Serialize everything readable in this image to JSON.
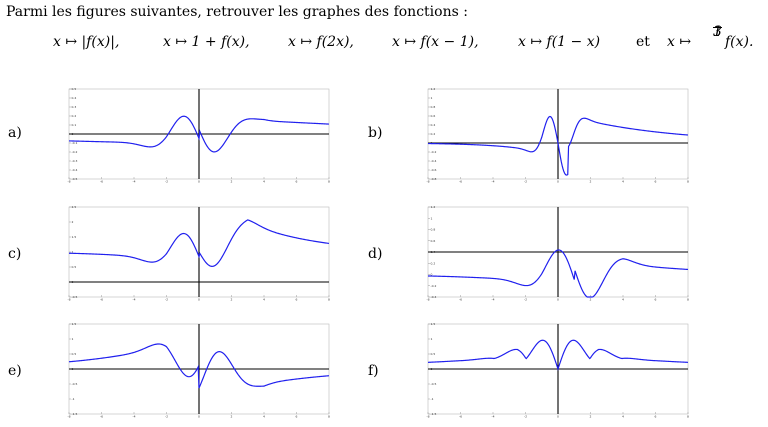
{
  "intro": "Parmi les figures suivantes, retrouver les graphes des fonctions :",
  "functions": [
    "x ↦ |f(x)|,",
    "x ↦ 1 + f(x),",
    "x ↦ f(2x),",
    "x ↦ f(x − 1),",
    "x ↦ f(1 − x)",
    "et",
    "x ↦",
    "f(x)."
  ],
  "fraction": {
    "num": "1",
    "den": "3"
  },
  "panels": [
    {
      "label": "a)",
      "yticks": [
        "0.5",
        "0.4",
        "0.3",
        "0.2",
        "0.1",
        "0",
        "-0.1",
        "-0.2",
        "-0.3",
        "-0.4",
        "-0.5"
      ]
    },
    {
      "label": "b)",
      "yticks": [
        "1.2",
        "1",
        "0.8",
        "0.6",
        "0.4",
        "0.2",
        "0",
        "-0.2",
        "-0.4",
        "-0.6",
        "-0.8"
      ]
    },
    {
      "label": "c)",
      "yticks": [
        "2.5",
        "2",
        "1.5",
        "1",
        "0.5",
        "0",
        "-0.5"
      ]
    },
    {
      "label": "d)",
      "yticks": [
        "1.2",
        "1",
        "0.8",
        "0.6",
        "0.4",
        "0.2",
        "0",
        "-0.2",
        "-0.4"
      ]
    },
    {
      "label": "e)",
      "yticks": [
        "1.5",
        "1",
        "0.5",
        "0",
        "-0.5",
        "-1",
        "-1.5"
      ]
    },
    {
      "label": "f)",
      "yticks": [
        "1.5",
        "1",
        "0.5",
        "0",
        "-0.5",
        "-1",
        "-1.5"
      ]
    }
  ],
  "xticks": [
    "-8",
    "-6",
    "-4",
    "-2",
    "0",
    "2",
    "4",
    "6",
    "8"
  ],
  "colors": {
    "curve": "#2020ee",
    "axis": "#000000"
  }
}
